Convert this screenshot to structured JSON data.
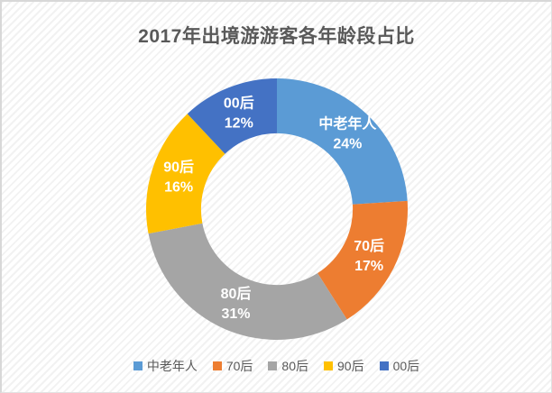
{
  "window": {
    "border_color": "#d8d8d8",
    "background_stripe_light": "#ffffff",
    "background_stripe_dark": "#f2f2f2"
  },
  "chart_data": {
    "type": "pie",
    "subtype": "donut",
    "title": "2017年出境游游客各年龄段占比",
    "title_color": "#595959",
    "categories": [
      "中老年人",
      "70后",
      "80后",
      "90后",
      "00后"
    ],
    "values": [
      24,
      17,
      31,
      16,
      12
    ],
    "unit": "%",
    "colors": [
      "#5B9BD5",
      "#ED7D31",
      "#A5A5A5",
      "#FFC000",
      "#4472C4"
    ],
    "start_angle_deg": 0,
    "direction": "clockwise",
    "hole_ratio": 0.58,
    "data_label_color": "#ffffff",
    "legend_position": "bottom"
  },
  "legend": {
    "text_color": "#595959",
    "items": [
      {
        "label": "中老年人",
        "color": "#5B9BD5"
      },
      {
        "label": "70后",
        "color": "#ED7D31"
      },
      {
        "label": "80后",
        "color": "#A5A5A5"
      },
      {
        "label": "90后",
        "color": "#FFC000"
      },
      {
        "label": "00后",
        "color": "#4472C4"
      }
    ]
  }
}
